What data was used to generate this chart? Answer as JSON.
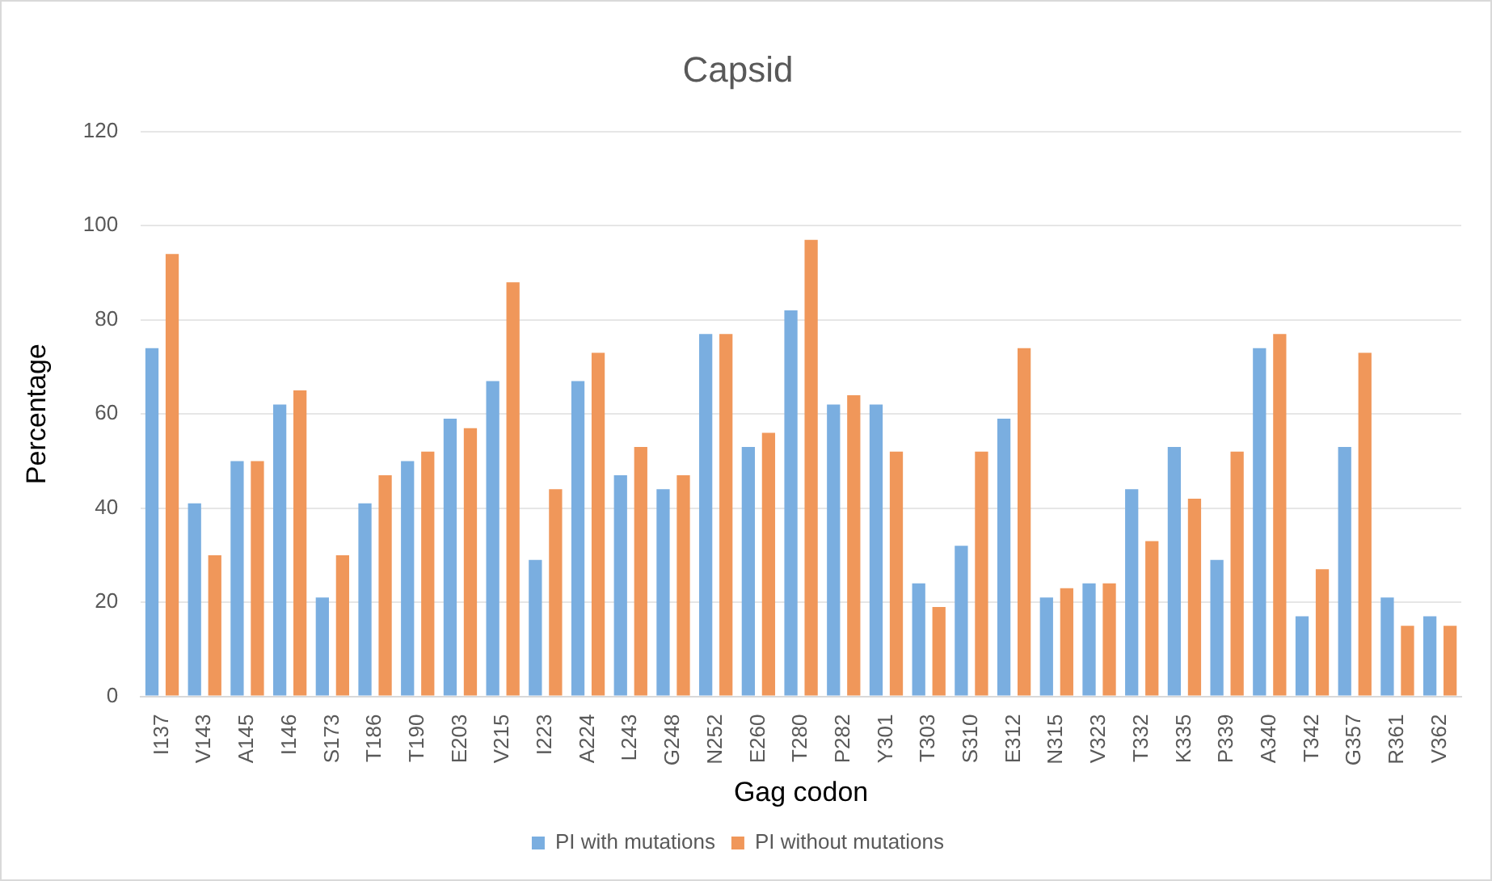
{
  "chart_data": {
    "type": "bar",
    "title": "Capsid",
    "xlabel": "Gag codon",
    "ylabel": "Percentage",
    "categories": [
      "I137",
      "V143",
      "A145",
      "I146",
      "S173",
      "T186",
      "T190",
      "E203",
      "V215",
      "I223",
      "A224",
      "L243",
      "G248",
      "N252",
      "E260",
      "T280",
      "P282",
      "Y301",
      "T303",
      "S310",
      "E312",
      "N315",
      "V323",
      "T332",
      "K335",
      "P339",
      "A340",
      "T342",
      "G357",
      "R361",
      "V362"
    ],
    "series": [
      {
        "name": "PI with mutations",
        "color": "#7aaee0",
        "values": [
          74,
          41,
          50,
          62,
          21,
          41,
          50,
          59,
          67,
          29,
          67,
          47,
          44,
          77,
          53,
          82,
          62,
          62,
          24,
          32,
          59,
          21,
          24,
          44,
          53,
          29,
          74,
          17,
          53,
          21,
          17
        ]
      },
      {
        "name": "PI without mutations",
        "color": "#f0975a",
        "values": [
          94,
          30,
          50,
          65,
          30,
          47,
          52,
          57,
          88,
          44,
          73,
          53,
          47,
          77,
          56,
          97,
          64,
          52,
          19,
          52,
          74,
          23,
          24,
          33,
          42,
          52,
          77,
          27,
          73,
          15,
          15
        ]
      }
    ],
    "ylim": [
      0,
      120
    ],
    "yticks": [
      0,
      20,
      40,
      60,
      80,
      100,
      120
    ],
    "grid": "y",
    "legend": "bottom"
  }
}
